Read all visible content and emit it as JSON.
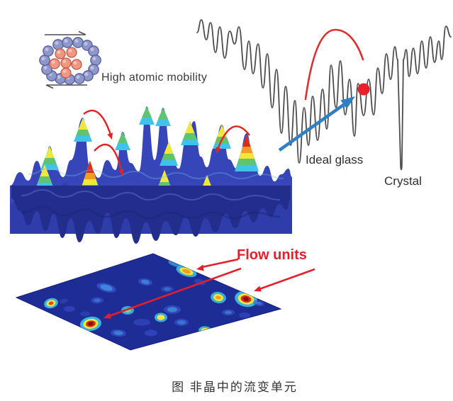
{
  "diagram": {
    "type": "scientific-figure",
    "caption": "图 非晶中的流变单元",
    "annotations": {
      "high_atomic_mobility": "High atomic mobility",
      "ideal_glass": "Ideal glass",
      "crystal": "Crystal",
      "flow_units": "Flow units"
    },
    "icons": [
      "shear-arrow-top-icon",
      "shear-arrow-bottom-icon",
      "hop-arrow-icon",
      "activation-barrier-arc-icon",
      "metastable-state-dot-icon",
      "transition-arrow-icon",
      "flow-unit-pointer-arrow-icon"
    ],
    "colors": {
      "annotation_red": "#e3202a",
      "transition_arrow_blue": "#2f80c3",
      "landscape_curve_gray": "#4d4d4f",
      "surface_back_blue": "#3646b8",
      "surface_mid_blue": "#2e3da9",
      "surface_front_blue": "#232d8c",
      "map_background_blue": "#1e2c96",
      "hotspot_cyan": "#3fc3e8",
      "hotspot_yellow": "#f2e63d",
      "hotspot_orange": "#f59a22",
      "hotspot_red": "#dc2a1c",
      "hotspot_dark_red": "#8c0f10",
      "atom_shell_blue": "#8f96c9",
      "atom_core_orange": "#f09681"
    }
  }
}
